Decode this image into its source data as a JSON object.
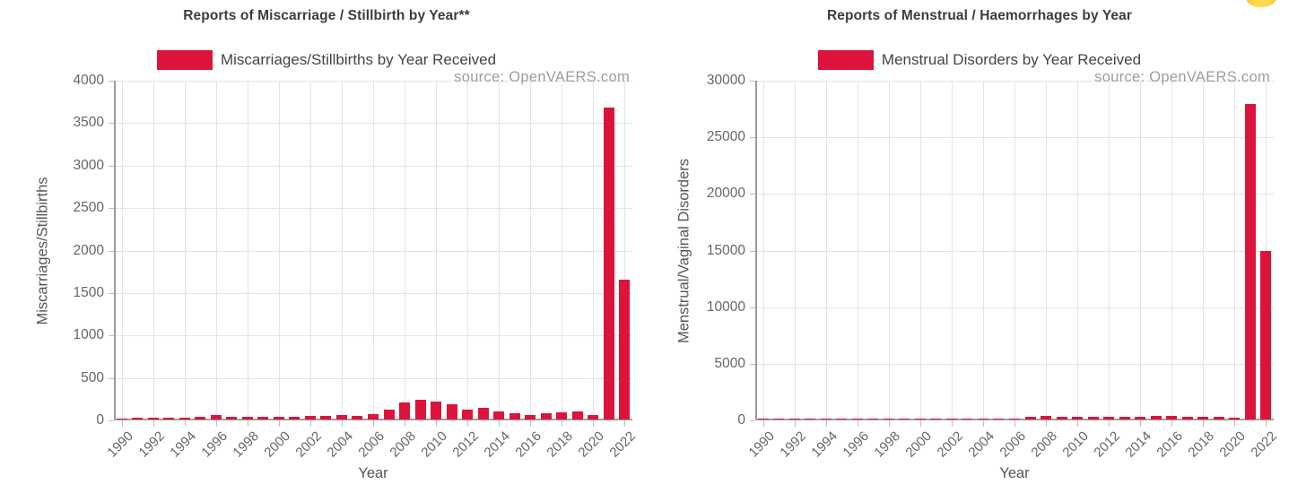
{
  "page": {
    "background": "#ffffff"
  },
  "decorations": {
    "emoji_badge_color": "#F5BC22"
  },
  "chart_data": [
    {
      "type": "bar",
      "title": "Reports of Miscarriage / Stillbirth by Year**",
      "legend_label": "Miscarriages/Stillbirths by Year Received",
      "source_note": "source: OpenVAERS.com",
      "xlabel": "Year",
      "ylabel": "Miscarriages/Stillbirths",
      "bar_color": "#DC143C",
      "grid": true,
      "legend_position": "top-center",
      "ylim": [
        0,
        4000
      ],
      "yticks": [
        0,
        500,
        1000,
        1500,
        2000,
        2500,
        3000,
        3500,
        4000
      ],
      "xticks": [
        "1990",
        "1992",
        "1994",
        "1996",
        "1998",
        "2000",
        "2002",
        "2004",
        "2006",
        "2008",
        "2010",
        "2012",
        "2014",
        "2016",
        "2018",
        "2020",
        "2022"
      ],
      "categories": [
        "1990",
        "1991",
        "1992",
        "1993",
        "1994",
        "1995",
        "1996",
        "1997",
        "1998",
        "1999",
        "2000",
        "2001",
        "2002",
        "2003",
        "2004",
        "2005",
        "2006",
        "2007",
        "2008",
        "2009",
        "2010",
        "2011",
        "2012",
        "2013",
        "2014",
        "2015",
        "2016",
        "2017",
        "2018",
        "2019",
        "2020",
        "2021",
        "2022"
      ],
      "values": [
        15,
        18,
        25,
        25,
        26,
        28,
        55,
        35,
        30,
        28,
        30,
        35,
        45,
        45,
        50,
        45,
        60,
        120,
        200,
        230,
        210,
        175,
        120,
        135,
        100,
        70,
        55,
        70,
        80,
        100,
        55,
        3670,
        1650
      ]
    },
    {
      "type": "bar",
      "title": "Reports of Menstrual / Haemorrhages by Year",
      "legend_label": "Menstrual Disorders by Year Received",
      "source_note": "source: OpenVAERS.com",
      "xlabel": "Year",
      "ylabel": "Menstrual/Vaginal Disorders",
      "bar_color": "#DC143C",
      "grid": true,
      "legend_position": "top-center",
      "ylim": [
        0,
        30000
      ],
      "yticks": [
        0,
        5000,
        10000,
        15000,
        20000,
        25000,
        30000
      ],
      "xticks": [
        "1990",
        "1992",
        "1994",
        "1996",
        "1998",
        "2000",
        "2002",
        "2004",
        "2006",
        "2008",
        "2010",
        "2012",
        "2014",
        "2016",
        "2018",
        "2020",
        "2022"
      ],
      "categories": [
        "1990",
        "1991",
        "1992",
        "1993",
        "1994",
        "1995",
        "1996",
        "1997",
        "1998",
        "1999",
        "2000",
        "2001",
        "2002",
        "2003",
        "2004",
        "2005",
        "2006",
        "2007",
        "2008",
        "2009",
        "2010",
        "2011",
        "2012",
        "2013",
        "2014",
        "2015",
        "2016",
        "2017",
        "2018",
        "2019",
        "2020",
        "2021",
        "2022"
      ],
      "values": [
        5,
        5,
        10,
        10,
        10,
        10,
        15,
        15,
        15,
        15,
        20,
        20,
        20,
        25,
        25,
        30,
        60,
        270,
        320,
        270,
        270,
        215,
        215,
        215,
        270,
        320,
        320,
        270,
        215,
        215,
        160,
        27900,
        14900
      ]
    }
  ]
}
